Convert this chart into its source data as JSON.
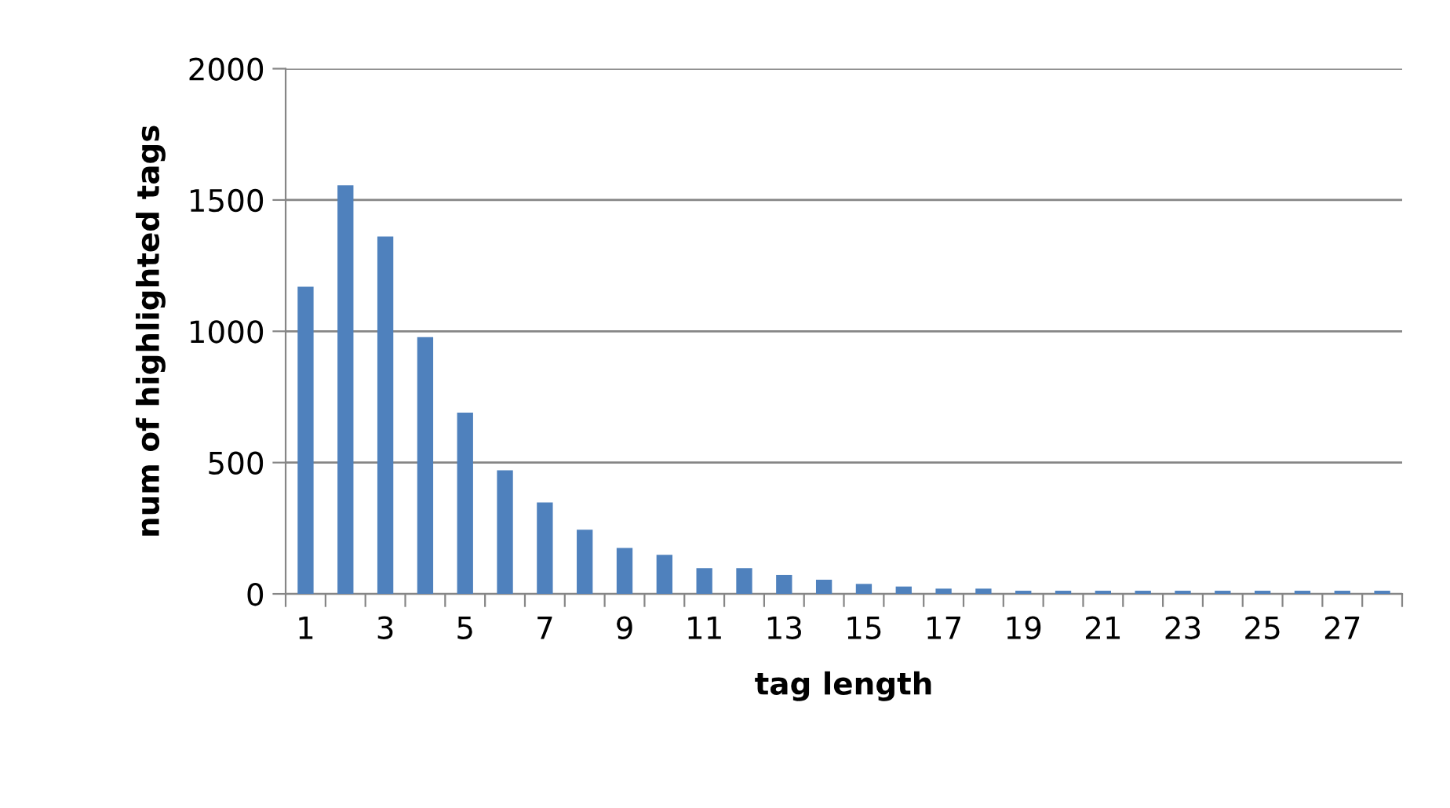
{
  "chart_data": {
    "type": "bar",
    "xlabel": "tag length",
    "ylabel": "num of highlighted tags",
    "categories": [
      "1",
      null,
      "3",
      null,
      "5",
      null,
      "7",
      null,
      "9",
      null,
      "11",
      null,
      "13",
      null,
      "15",
      null,
      "17",
      null,
      "19",
      null,
      "21",
      null,
      "23",
      null,
      "25",
      null,
      "27",
      null
    ],
    "values": [
      1170,
      1556,
      1361,
      978,
      690,
      471,
      348,
      244,
      175,
      149,
      98,
      98,
      72,
      54,
      38,
      28,
      20,
      20,
      12,
      12,
      12,
      12,
      12,
      12,
      12,
      12,
      12,
      12
    ],
    "color": "#4f81bd",
    "ylim": [
      0,
      2000
    ],
    "yticks": [
      0,
      500,
      1000,
      1500,
      2000
    ],
    "grid": "y"
  }
}
